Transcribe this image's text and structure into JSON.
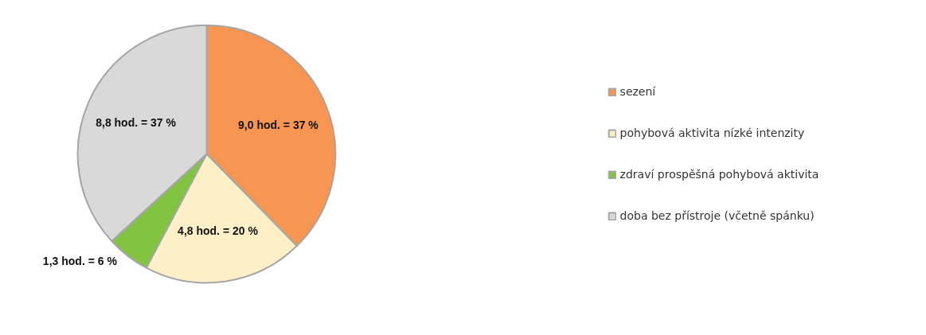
{
  "chart_data": {
    "type": "pie",
    "categories": [
      "sezení",
      "pohybová aktivita nízké intenzity",
      "zdraví prospěšná pohybová aktivita",
      "doba bez přístroje (včetně spánku)"
    ],
    "values": [
      9.0,
      4.8,
      1.3,
      8.8
    ],
    "value_labels": [
      "9,0 hod. = 37 %",
      "4,8 hod. = 20 %",
      "1,3 hod. = 6 %",
      "8,8 hod. = 37 %"
    ],
    "colors": [
      "#f79552",
      "#fdf0c8",
      "#82c341",
      "#d9d9d9"
    ],
    "legend": "right"
  }
}
